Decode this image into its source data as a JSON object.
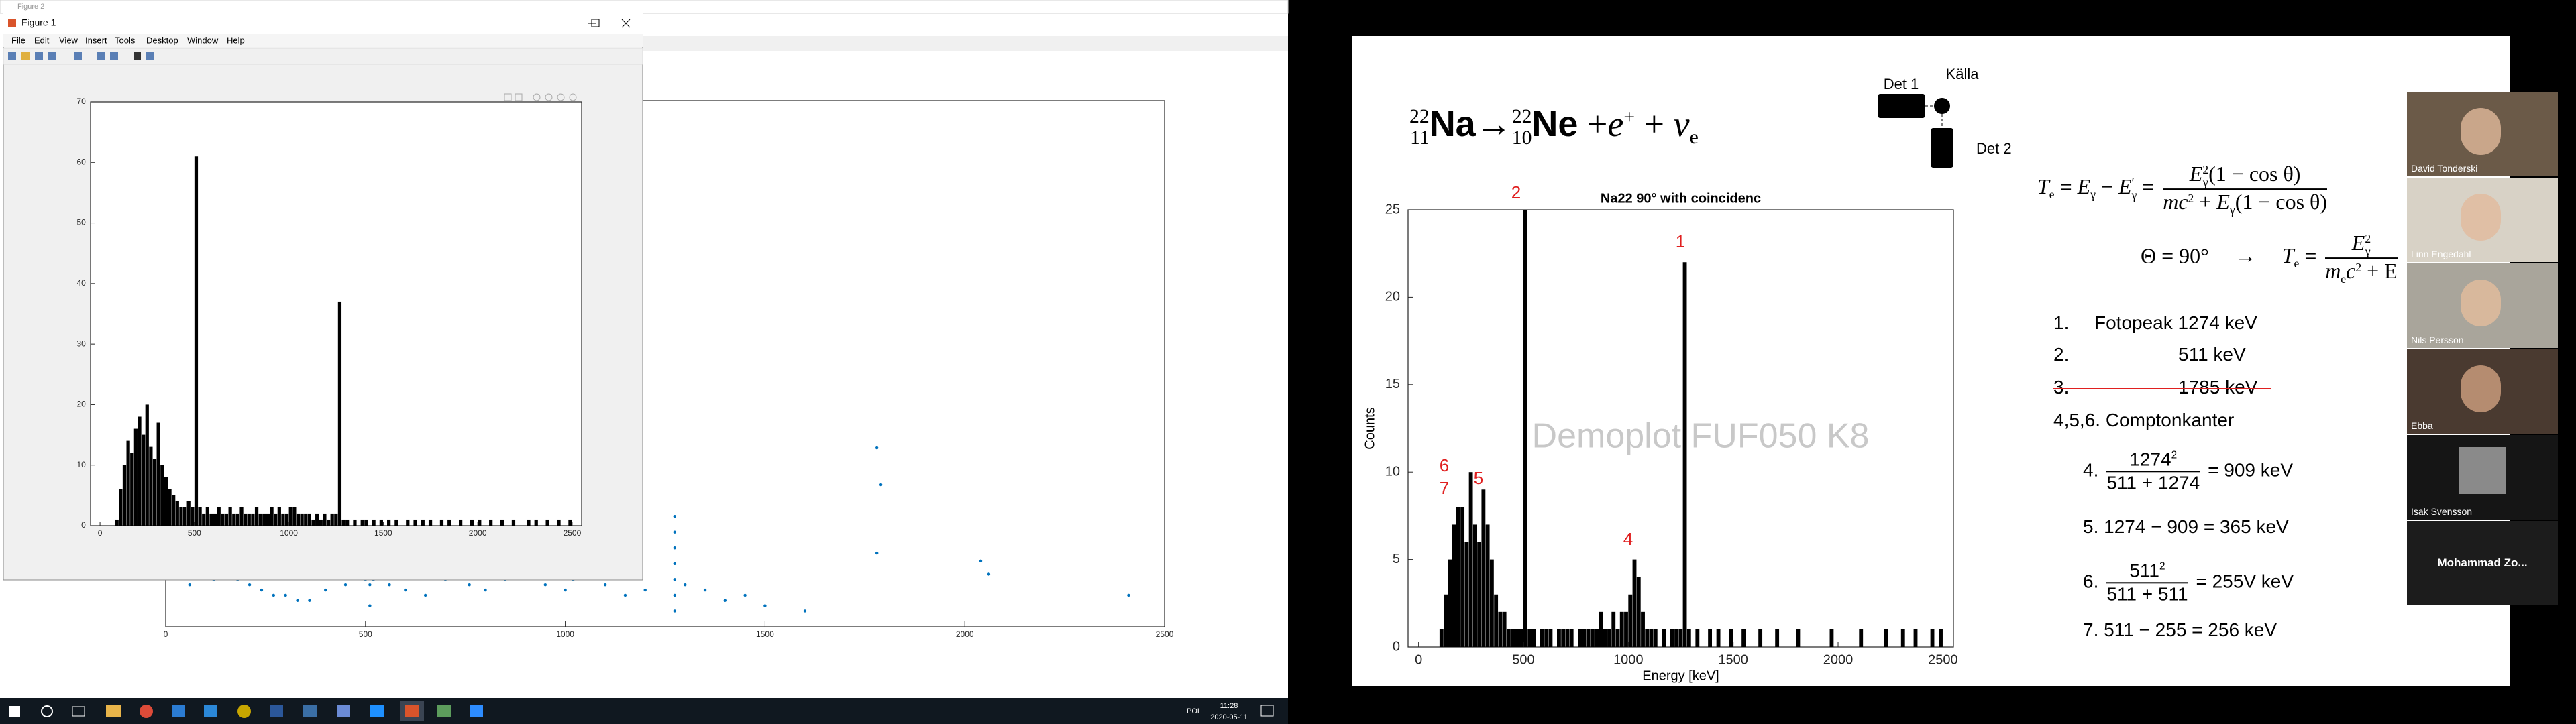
{
  "desktop": {
    "back_window_title": "Figure 2",
    "front_window_title": "Figure 1",
    "menu": [
      "File",
      "Edit",
      "View",
      "Insert",
      "Tools",
      "Desktop",
      "Window",
      "Help"
    ]
  },
  "chart_data": [
    {
      "type": "scatter",
      "color": "#0072bd",
      "xlim": [
        0,
        2500
      ],
      "ylim": [
        0,
        100
      ],
      "xticks": [
        0,
        500,
        1000,
        1500,
        2000,
        2500
      ],
      "x": [
        60,
        120,
        150,
        180,
        210,
        240,
        270,
        300,
        330,
        360,
        400,
        450,
        500,
        511,
        511,
        511,
        511,
        520,
        560,
        600,
        650,
        700,
        760,
        800,
        850,
        900,
        950,
        1000,
        1020,
        1050,
        1100,
        1150,
        1200,
        1274,
        1274,
        1274,
        1274,
        1274,
        1274,
        1274,
        1300,
        1350,
        1400,
        1450,
        1500,
        1600,
        1780,
        1790,
        1780,
        2040,
        2060,
        2410
      ],
      "values": [
        8,
        9,
        10,
        9,
        8,
        7,
        6,
        6,
        5,
        5,
        7,
        8,
        9,
        4,
        8,
        12,
        14,
        9,
        8,
        7,
        6,
        9,
        8,
        7,
        9,
        10,
        8,
        7,
        9,
        11,
        8,
        6,
        7,
        3,
        6,
        9,
        12,
        15,
        18,
        21,
        8,
        7,
        5,
        6,
        4,
        3,
        34,
        27,
        14,
        12.5,
        10,
        6
      ]
    },
    {
      "type": "histogram",
      "color": "#000000",
      "xlim": [
        -50,
        2550
      ],
      "ylim": [
        0,
        70
      ],
      "xticks": [
        0,
        500,
        1000,
        1500,
        2000,
        2500
      ],
      "yticks": [
        0,
        10,
        20,
        30,
        40,
        50,
        60,
        70
      ],
      "bins": [
        0,
        20,
        40,
        60,
        80,
        100,
        120,
        140,
        160,
        180,
        200,
        220,
        240,
        260,
        280,
        300,
        320,
        340,
        360,
        380,
        400,
        420,
        440,
        460,
        480,
        500,
        520,
        540,
        560,
        580,
        600,
        620,
        640,
        660,
        680,
        700,
        720,
        740,
        760,
        780,
        800,
        820,
        840,
        860,
        880,
        900,
        920,
        940,
        960,
        980,
        1000,
        1020,
        1040,
        1060,
        1080,
        1100,
        1120,
        1140,
        1160,
        1180,
        1200,
        1220,
        1240,
        1260,
        1280,
        1300,
        1320,
        1340,
        1360,
        1380,
        1400,
        1420,
        1440,
        1460,
        1480,
        1500,
        1520,
        1540,
        1560,
        1580,
        1600,
        1620,
        1640,
        1660,
        1680,
        1700,
        1720,
        1740,
        1760,
        1780,
        1800,
        1820,
        1840,
        1860,
        1880,
        1900,
        1920,
        1940,
        1960,
        1980,
        2000,
        2020,
        2040,
        2060,
        2080,
        2100,
        2120,
        2140,
        2160,
        2180,
        2200,
        2220,
        2240,
        2260,
        2280,
        2300,
        2320,
        2340,
        2360,
        2380,
        2400,
        2420,
        2440,
        2460,
        2480,
        2500
      ],
      "values": [
        0,
        0,
        0,
        0,
        1,
        6,
        10,
        14,
        12,
        16,
        18,
        15,
        20,
        13,
        11,
        17,
        10,
        8,
        6,
        5,
        4,
        3,
        3,
        4,
        3,
        61,
        3,
        2,
        3,
        2,
        2,
        3,
        2,
        2,
        3,
        2,
        2,
        3,
        2,
        2,
        2,
        3,
        2,
        2,
        2,
        3,
        2,
        3,
        2,
        2,
        3,
        3,
        2,
        2,
        2,
        2,
        1,
        2,
        1,
        2,
        1,
        2,
        2,
        37,
        1,
        1,
        0,
        1,
        0,
        1,
        1,
        0,
        1,
        0,
        1,
        0,
        1,
        0,
        1,
        0,
        0,
        1,
        0,
        1,
        0,
        1,
        0,
        1,
        0,
        0,
        1,
        0,
        1,
        0,
        0,
        1,
        0,
        0,
        1,
        0,
        1,
        0,
        0,
        1,
        0,
        0,
        1,
        0,
        0,
        1,
        0,
        0,
        0,
        1,
        0,
        1,
        0,
        0,
        1,
        0,
        0,
        1,
        0,
        0,
        1
      ]
    },
    {
      "type": "histogram",
      "title": "Na22 90° with coincidenc",
      "x_label": "Energy [keV]",
      "y_label": "Counts",
      "color": "#000000",
      "xlim": [
        -50,
        2550
      ],
      "ylim": [
        0,
        25
      ],
      "xticks": [
        0,
        500,
        1000,
        1500,
        2000,
        2500
      ],
      "yticks": [
        0,
        5,
        10,
        15,
        20,
        25
      ],
      "annotations": [
        "2",
        "1",
        "6",
        "7",
        "5",
        "4"
      ],
      "bins": [
        0,
        20,
        40,
        60,
        80,
        100,
        120,
        140,
        160,
        180,
        200,
        220,
        240,
        260,
        280,
        300,
        320,
        340,
        360,
        380,
        400,
        420,
        440,
        460,
        480,
        500,
        520,
        540,
        560,
        580,
        600,
        620,
        640,
        660,
        680,
        700,
        720,
        740,
        760,
        780,
        800,
        820,
        840,
        860,
        880,
        900,
        920,
        940,
        960,
        980,
        1000,
        1020,
        1040,
        1060,
        1080,
        1100,
        1120,
        1140,
        1160,
        1180,
        1200,
        1220,
        1240,
        1260,
        1280,
        1300,
        1320,
        1340,
        1360,
        1380,
        1400,
        1420,
        1440,
        1460,
        1480,
        1500,
        1520,
        1540,
        1560,
        1580,
        1600,
        1620,
        1640,
        1660,
        1680,
        1700,
        1720,
        1740,
        1760,
        1780,
        1800,
        1820,
        1840,
        1860,
        1880,
        1900,
        1920,
        1940,
        1960,
        1980,
        2000,
        2020,
        2040,
        2060,
        2080,
        2100,
        2120,
        2140,
        2160,
        2180,
        2200,
        2220,
        2240,
        2260,
        2280,
        2300,
        2320,
        2340,
        2360,
        2380,
        2400,
        2420,
        2440,
        2460,
        2480,
        2500
      ],
      "values": [
        0,
        0,
        0,
        0,
        0,
        1,
        3,
        5,
        7,
        8,
        8,
        6,
        10,
        7,
        6,
        9,
        7,
        5,
        3,
        2,
        2,
        1,
        1,
        1,
        1,
        25,
        1,
        1,
        0,
        1,
        1,
        1,
        0,
        1,
        1,
        1,
        1,
        0,
        1,
        1,
        1,
        1,
        1,
        2,
        1,
        1,
        2,
        1,
        2,
        2,
        3,
        5,
        4,
        2,
        1,
        1,
        1,
        0,
        1,
        0,
        1,
        1,
        1,
        22,
        1,
        0,
        1,
        0,
        0,
        1,
        0,
        1,
        0,
        0,
        1,
        0,
        0,
        1,
        0,
        0,
        0,
        1,
        0,
        0,
        0,
        1,
        0,
        0,
        0,
        0,
        1,
        0,
        0,
        0,
        0,
        0,
        0,
        0,
        1,
        0,
        0,
        0,
        0,
        0,
        0,
        1,
        0,
        0,
        0,
        0,
        0,
        1,
        0,
        0,
        0,
        1,
        0,
        0,
        1,
        0,
        0,
        0,
        1,
        0,
        1
      ]
    }
  ],
  "slide": {
    "reaction": [
      {
        "pre_sup": "22",
        "pre_sub": "11",
        "base": "Na"
      },
      "→",
      {
        "pre_sup": "22",
        "pre_sub": "10",
        "base": "Ne"
      },
      " +",
      {
        "base": "e",
        "sup": "+"
      },
      " + ",
      {
        "base": "ν",
        "sub": "e"
      }
    ],
    "diagram": {
      "det1": "Det 1",
      "source": "Källa",
      "det2": "Det 2"
    },
    "formula1": [
      {
        "base": "T",
        "sub": "e"
      },
      " = ",
      {
        "base": "E",
        "sub": "γ"
      },
      " − ",
      {
        "base": "E",
        "sub": "γ",
        "sup": "′"
      },
      " = ",
      {
        "num": [
          {
            "base": "E",
            "sub": "γ",
            "sup": "2"
          },
          "(1 − cos θ)"
        ],
        "den": [
          {
            "base": "mc",
            "sup": "2"
          },
          " + ",
          {
            "base": "E",
            "sub": "γ"
          },
          "(1 − cos θ)"
        ]
      }
    ],
    "formula2": [
      "Θ = 90°",
      "→",
      {
        "base": "T",
        "sub": "e"
      },
      " = ",
      {
        "num": [
          {
            "base": "E",
            "sub": "γ",
            "sup": "2"
          }
        ],
        "den": [
          {
            "base": "m",
            "sub": "e"
          },
          {
            "base": "c",
            "sup": "2"
          },
          " + E"
        ]
      }
    ],
    "items": [
      [
        "1.",
        "Fotopeak 1274 keV"
      ],
      [
        "2.",
        "511 keV"
      ],
      [
        "3.",
        "1785 keV"
      ],
      [
        "4,5,6. Comptonkanter"
      ],
      [
        "4. ",
        {
          "num": [
            {
              "base": "1274",
              "sup": "2"
            }
          ],
          "den": [
            "511 + 1274"
          ]
        },
        " = 909 keV"
      ],
      [
        "5. 1274 − 909 = 365 keV"
      ],
      [
        "6. ",
        {
          "num": [
            {
              "base": "511",
              "sup": "2"
            }
          ],
          "den": [
            "511 + 511"
          ]
        },
        " = 255V keV"
      ],
      [
        "7.  511 − 255 = 256 keV"
      ]
    ],
    "watermark": "Demoplot FUF050 K8"
  },
  "participants": [
    "David Tonderski",
    "Linn Engedahl",
    "Nils Persson",
    "Ebba",
    "Isak Svensson",
    "Mohammad Zo..."
  ],
  "taskbar": {
    "language": "POL",
    "time": "11:28",
    "date": "2020-05-11"
  }
}
